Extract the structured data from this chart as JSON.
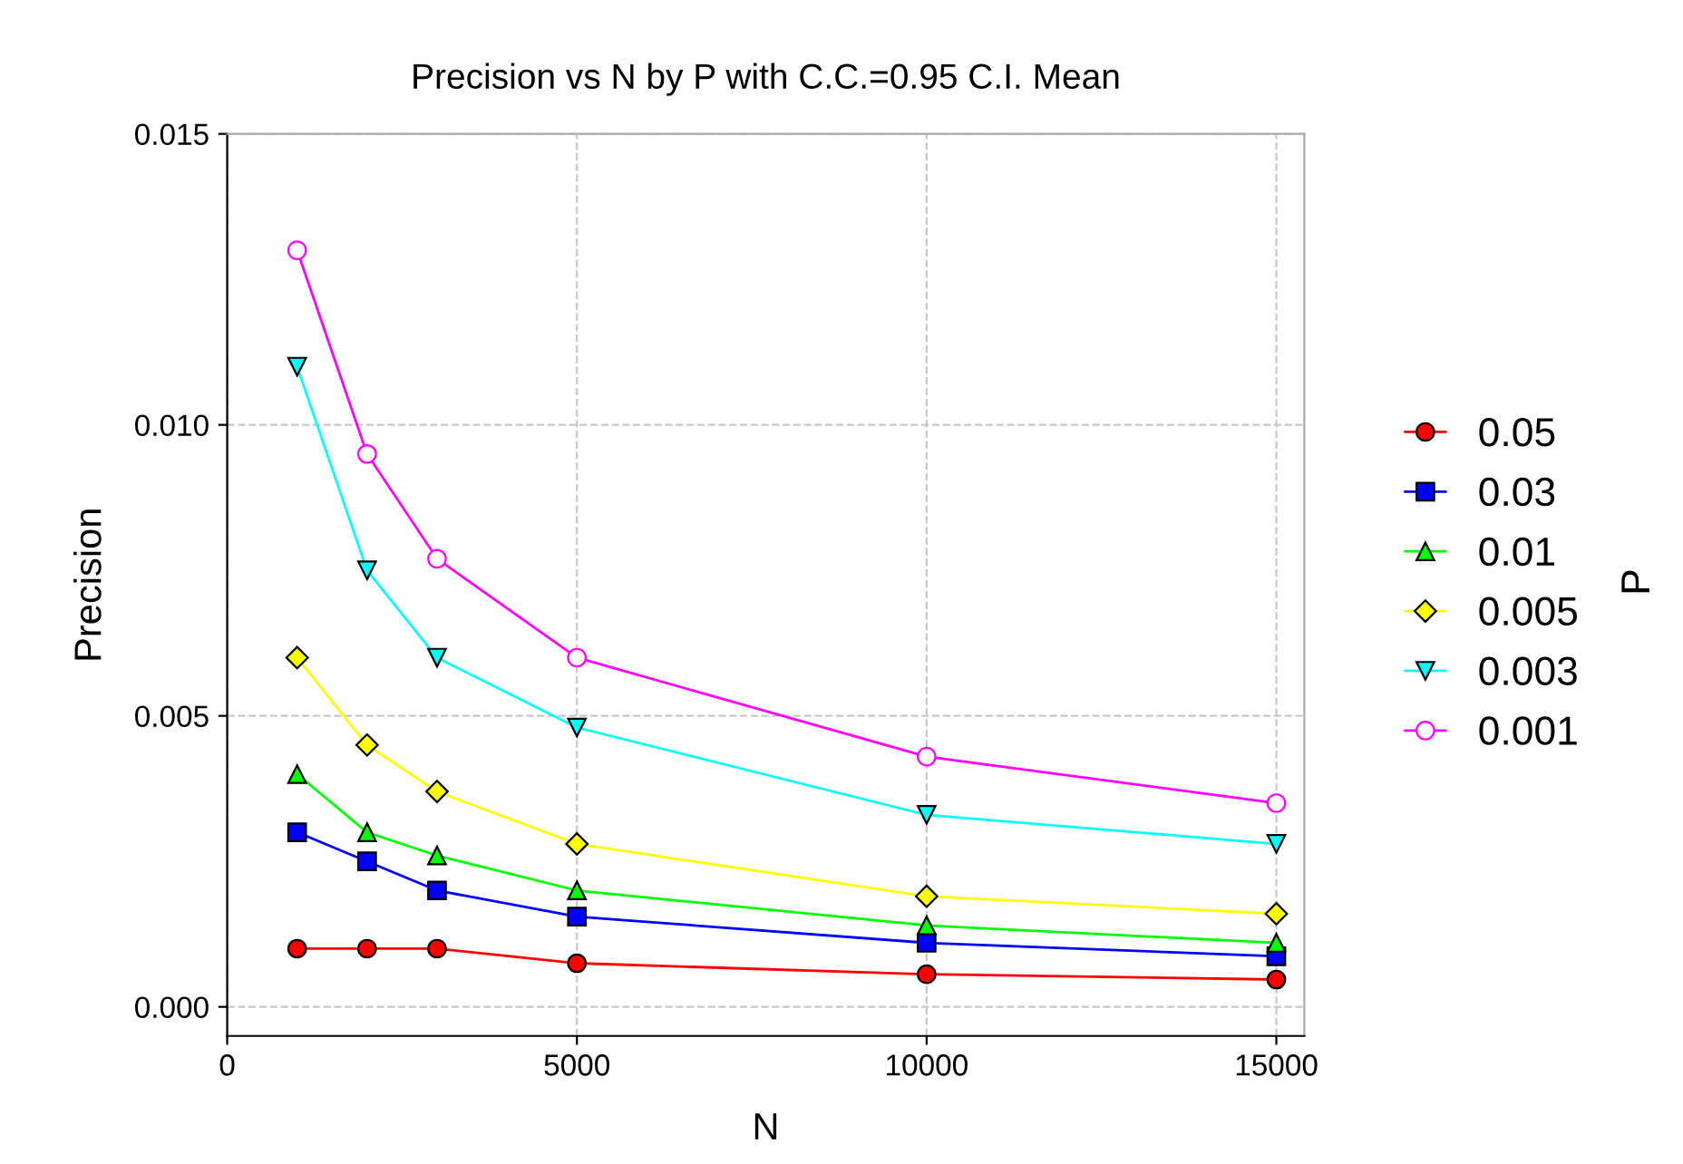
{
  "chart_data": {
    "type": "line",
    "title": "Precision vs N by P with C.C.=0.95 C.I. Mean",
    "xlabel": "N",
    "ylabel": "Precision",
    "legend_title": "P",
    "x": [
      1000,
      2000,
      3000,
      5000,
      10000,
      15000
    ],
    "series": [
      {
        "name": "0.05",
        "color": "#ff0000",
        "marker": "circle",
        "values": [
          0.001,
          0.001,
          0.001,
          0.00075,
          0.00056,
          0.00047
        ]
      },
      {
        "name": "0.03",
        "color": "#0000ff",
        "marker": "square",
        "values": [
          0.003,
          0.0025,
          0.002,
          0.00155,
          0.0011,
          0.00087
        ]
      },
      {
        "name": "0.01",
        "color": "#00ff00",
        "marker": "triangle",
        "values": [
          0.004,
          0.003,
          0.0026,
          0.002,
          0.0014,
          0.0011
        ]
      },
      {
        "name": "0.005",
        "color": "#ffff00",
        "marker": "diamond",
        "values": [
          0.006,
          0.0045,
          0.0037,
          0.0028,
          0.0019,
          0.0016
        ]
      },
      {
        "name": "0.003",
        "color": "#00ffff",
        "marker": "triangle-down",
        "values": [
          0.011,
          0.0075,
          0.006,
          0.0048,
          0.0033,
          0.0028
        ]
      },
      {
        "name": "0.001",
        "color": "#ff00ff",
        "marker": "circle-open",
        "values": [
          0.013,
          0.0095,
          0.0077,
          0.006,
          0.0043,
          0.0035
        ]
      }
    ],
    "xlim": [
      0,
      15400
    ],
    "ylim": [
      -0.0005,
      0.015
    ],
    "xticks": [
      0,
      5000,
      10000,
      15000
    ],
    "yticks": [
      {
        "value": 0,
        "label": "0.000"
      },
      {
        "value": 0.005,
        "label": "0.005"
      },
      {
        "value": 0.01,
        "label": "0.010"
      },
      {
        "value": 0.015,
        "label": "0.015"
      }
    ],
    "grid": true,
    "legend": "right",
    "line_style": "solid"
  }
}
